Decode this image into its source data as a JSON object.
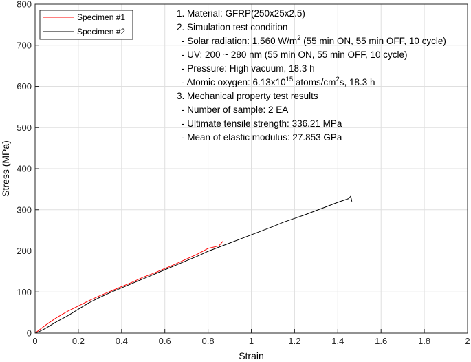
{
  "chart_data": {
    "type": "line",
    "xlabel": "Strain",
    "ylabel": "Stress (MPa)",
    "xlim": [
      0,
      2
    ],
    "ylim": [
      0,
      800
    ],
    "xticks": [
      "0",
      "0.2",
      "0.4",
      "0.6",
      "0.8",
      "1",
      "1.2",
      "1.4",
      "1.6",
      "1.8",
      "2"
    ],
    "yticks": [
      "0",
      "100",
      "200",
      "300",
      "400",
      "500",
      "600",
      "700",
      "800"
    ],
    "grid": true,
    "legend_position": "top-left",
    "series": [
      {
        "name": "Specimen #1",
        "color": "#ff0000",
        "x": [
          0,
          0.02,
          0.05,
          0.1,
          0.15,
          0.2,
          0.25,
          0.3,
          0.35,
          0.4,
          0.45,
          0.5,
          0.55,
          0.6,
          0.65,
          0.7,
          0.75,
          0.8,
          0.85,
          0.87
        ],
        "y": [
          0,
          8,
          20,
          38,
          53,
          66,
          79,
          91,
          102,
          113,
          124,
          136,
          146,
          157,
          168,
          180,
          192,
          206,
          212,
          224
        ]
      },
      {
        "name": "Specimen #2",
        "color": "#000000",
        "x": [
          0,
          0.02,
          0.05,
          0.1,
          0.15,
          0.2,
          0.25,
          0.3,
          0.35,
          0.4,
          0.45,
          0.5,
          0.55,
          0.6,
          0.65,
          0.7,
          0.75,
          0.8,
          0.85,
          0.9,
          0.95,
          1.0,
          1.05,
          1.1,
          1.15,
          1.2,
          1.25,
          1.3,
          1.35,
          1.4,
          1.45,
          1.46,
          1.465
        ],
        "y": [
          0,
          4,
          12,
          28,
          42,
          58,
          74,
          87,
          99,
          110,
          121,
          132,
          143,
          154,
          165,
          176,
          187,
          199,
          209,
          219,
          229,
          239,
          249,
          259,
          270,
          279,
          288,
          298,
          308,
          318,
          327,
          333,
          320
        ]
      }
    ]
  },
  "annotation": {
    "lines": [
      {
        "main": "1. Material: GFRP(250x25x2.5)"
      },
      {
        "main": "2. Simulation test condition"
      },
      {
        "main": "- Solar radiation: 1,560 W/m",
        "sup": "2",
        "after": " (55 min ON, 55 min OFF, 10 cycle)"
      },
      {
        "main": "- UV: 200 ~ 280 nm (55 min ON, 55 min OFF, 10 cycle)"
      },
      {
        "main": "- Pressure: High vacuum, 18.3 h"
      },
      {
        "main": "- Atomic oxygen: 6.13x10",
        "sup": "15",
        "after": " atoms/cm",
        "sup2": "2",
        "after2": "s, 18.3 h"
      },
      {
        "main": "3. Mechanical property test results"
      },
      {
        "main": "- Number of sample: 2 EA"
      },
      {
        "main": "- Ultimate tensile strength: 336.21 MPa"
      },
      {
        "main": "- Mean of elastic modulus: 27.853 GPa"
      }
    ]
  }
}
